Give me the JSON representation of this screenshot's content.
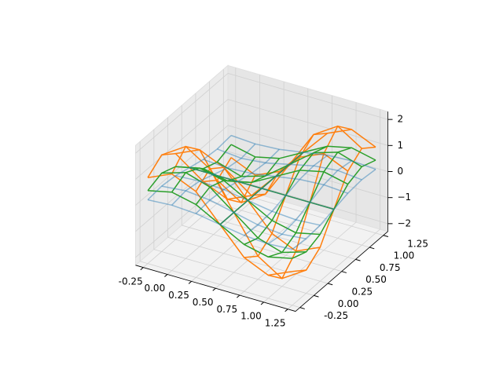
{
  "chart_data": {
    "type": "wireframe3d",
    "x": [
      -0.25,
      0,
      0.25,
      0.5,
      0.75,
      1,
      1.25
    ],
    "y": [
      -0.25,
      0,
      0.25,
      0.5,
      0.75,
      1,
      1.25
    ],
    "series": [
      {
        "color": "#ff7f0e",
        "z": [
          [
            1,
            1.41,
            1,
            0,
            -1,
            -1.41,
            -1
          ],
          [
            1.41,
            2,
            1.41,
            0,
            -1.41,
            -2,
            -1.41
          ],
          [
            1,
            1.41,
            1,
            0,
            -1,
            -1.41,
            -1
          ],
          [
            0,
            0,
            0,
            0,
            0,
            0,
            0
          ],
          [
            -1,
            -1.41,
            -1,
            0,
            1,
            1.41,
            1
          ],
          [
            -1.41,
            -2,
            -1.41,
            0,
            1.41,
            2,
            1.41
          ],
          [
            -1,
            -1.41,
            -1,
            0,
            1,
            1.41,
            1
          ]
        ]
      },
      {
        "color": "#2ca02c",
        "z": [
          [
            0.5,
            0.71,
            0.5,
            0,
            -0.5,
            -0.71,
            -0.5
          ],
          [
            0.71,
            1,
            0.71,
            0,
            -0.71,
            -1,
            -0.71
          ],
          [
            0.5,
            0.71,
            0.5,
            0,
            -0.5,
            -0.71,
            -0.5
          ],
          [
            0,
            0,
            0,
            0,
            0,
            0,
            0
          ],
          [
            -0.5,
            -0.71,
            -0.5,
            0,
            0.5,
            0.71,
            0.5
          ],
          [
            -0.71,
            -1,
            -0.71,
            0,
            0.71,
            1,
            0.71
          ],
          [
            -0.5,
            -0.71,
            -0.5,
            0,
            0.5,
            0.71,
            0.5
          ]
        ]
      },
      {
        "color": "#1f77b4",
        "z": [
          [
            0.15,
            0.21,
            0.15,
            0,
            -0.15,
            -0.21,
            -0.15
          ],
          [
            0.21,
            0.3,
            0.21,
            0,
            -0.21,
            -0.3,
            -0.21
          ],
          [
            0.15,
            0.21,
            0.15,
            0,
            -0.15,
            -0.21,
            -0.15
          ],
          [
            0,
            0,
            0,
            0,
            0,
            0,
            0
          ],
          [
            -0.15,
            -0.21,
            -0.15,
            0,
            0.15,
            0.21,
            0.15
          ],
          [
            -0.21,
            -0.3,
            -0.21,
            0,
            0.21,
            0.3,
            0.21
          ],
          [
            -0.15,
            -0.21,
            -0.15,
            0,
            0.15,
            0.21,
            0.15
          ]
        ]
      }
    ],
    "xlim": [
      -0.33,
      1.33
    ],
    "ylim": [
      -0.33,
      1.33
    ],
    "zlim": [
      -2.3,
      2.3
    ],
    "xticks": [
      -0.25,
      {
        "value": 0,
        "label": "0.00"
      },
      0.25,
      {
        "value": 0.5,
        "label": "0.50"
      },
      0.75,
      {
        "value": 1,
        "label": "1.00"
      },
      1.25
    ],
    "yticks": [
      -0.25,
      {
        "value": 0,
        "label": "0.00"
      },
      0.25,
      {
        "value": 0.5,
        "label": "0.50"
      },
      0.75,
      {
        "value": 1,
        "label": "1.00"
      },
      1.25
    ],
    "zticks": [
      {
        "value": -2,
        "label": "−2"
      },
      {
        "value": -1,
        "label": "−1"
      },
      0,
      1,
      2
    ],
    "grid": true
  }
}
